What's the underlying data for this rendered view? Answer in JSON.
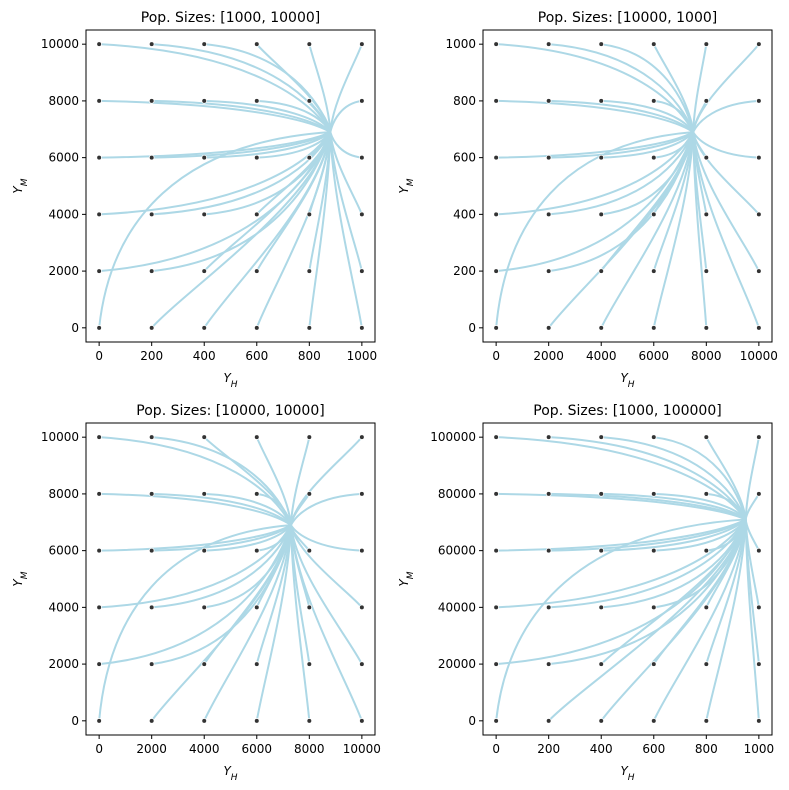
{
  "chart_data": [
    {
      "type": "line",
      "title": "Pop. Sizes: [1000, 10000]",
      "xlabel": "Y_H",
      "ylabel": "Y_M",
      "xlim": [
        -50,
        1050
      ],
      "ylim": [
        -500,
        10500
      ],
      "xticks": [
        0,
        200,
        400,
        600,
        800,
        1000
      ],
      "yticks": [
        0,
        2000,
        4000,
        6000,
        8000,
        10000
      ],
      "xticklabels": [
        "0",
        "200",
        "400",
        "600",
        "800",
        "1000"
      ],
      "yticklabels": [
        "0",
        "2000",
        "4000",
        "6000",
        "8000",
        "10000"
      ],
      "grid": false,
      "series_color": "#add8e6",
      "initial_x": [
        0,
        200,
        400,
        600,
        800,
        1000
      ],
      "initial_y": [
        0,
        2000,
        4000,
        6000,
        8000,
        10000
      ],
      "equilibrium": [
        880,
        6900
      ],
      "origin_exit_factor": 0.96
    },
    {
      "type": "line",
      "title": "Pop. Sizes: [10000, 1000]",
      "xlabel": "Y_H",
      "ylabel": "Y_M",
      "xlim": [
        -500,
        10500
      ],
      "ylim": [
        -50,
        1050
      ],
      "xticks": [
        0,
        2000,
        4000,
        6000,
        8000,
        10000
      ],
      "yticks": [
        0,
        200,
        400,
        600,
        800,
        1000
      ],
      "xticklabels": [
        "0",
        "2000",
        "4000",
        "6000",
        "8000",
        "10000"
      ],
      "yticklabels": [
        "0",
        "200",
        "400",
        "600",
        "800",
        "1000"
      ],
      "grid": false,
      "series_color": "#add8e6",
      "initial_x": [
        0,
        2000,
        4000,
        6000,
        8000,
        10000
      ],
      "initial_y": [
        0,
        200,
        400,
        600,
        800,
        1000
      ],
      "equilibrium": [
        7500,
        690
      ],
      "origin_exit_factor": 0.6
    },
    {
      "type": "line",
      "title": "Pop. Sizes: [10000, 10000]",
      "xlabel": "Y_H",
      "ylabel": "Y_M",
      "xlim": [
        -500,
        10500
      ],
      "ylim": [
        -500,
        10500
      ],
      "xticks": [
        0,
        2000,
        4000,
        6000,
        8000,
        10000
      ],
      "yticks": [
        0,
        2000,
        4000,
        6000,
        8000,
        10000
      ],
      "xticklabels": [
        "0",
        "2000",
        "4000",
        "6000",
        "8000",
        "10000"
      ],
      "yticklabels": [
        "0",
        "2000",
        "4000",
        "6000",
        "8000",
        "10000"
      ],
      "grid": false,
      "series_color": "#add8e6",
      "initial_x": [
        0,
        2000,
        4000,
        6000,
        8000,
        10000
      ],
      "initial_y": [
        0,
        2000,
        4000,
        6000,
        8000,
        10000
      ],
      "equilibrium": [
        7300,
        6900
      ],
      "origin_exit_factor": 0.6
    },
    {
      "type": "line",
      "title": "Pop. Sizes: [1000, 100000]",
      "xlabel": "Y_H",
      "ylabel": "Y_M",
      "xlim": [
        -50,
        1050
      ],
      "ylim": [
        -5000,
        105000
      ],
      "xticks": [
        0,
        200,
        400,
        600,
        800,
        1000
      ],
      "yticks": [
        0,
        20000,
        40000,
        60000,
        80000,
        100000
      ],
      "xticklabels": [
        "0",
        "200",
        "400",
        "600",
        "800",
        "1000"
      ],
      "yticklabels": [
        "0",
        "20000",
        "40000",
        "60000",
        "80000",
        "100000"
      ],
      "grid": false,
      "series_color": "#add8e6",
      "initial_x": [
        0,
        200,
        400,
        600,
        800,
        1000
      ],
      "initial_y": [
        0,
        20000,
        40000,
        60000,
        80000,
        100000
      ],
      "equilibrium": [
        950,
        71000
      ],
      "origin_exit_factor": 0.97
    }
  ]
}
